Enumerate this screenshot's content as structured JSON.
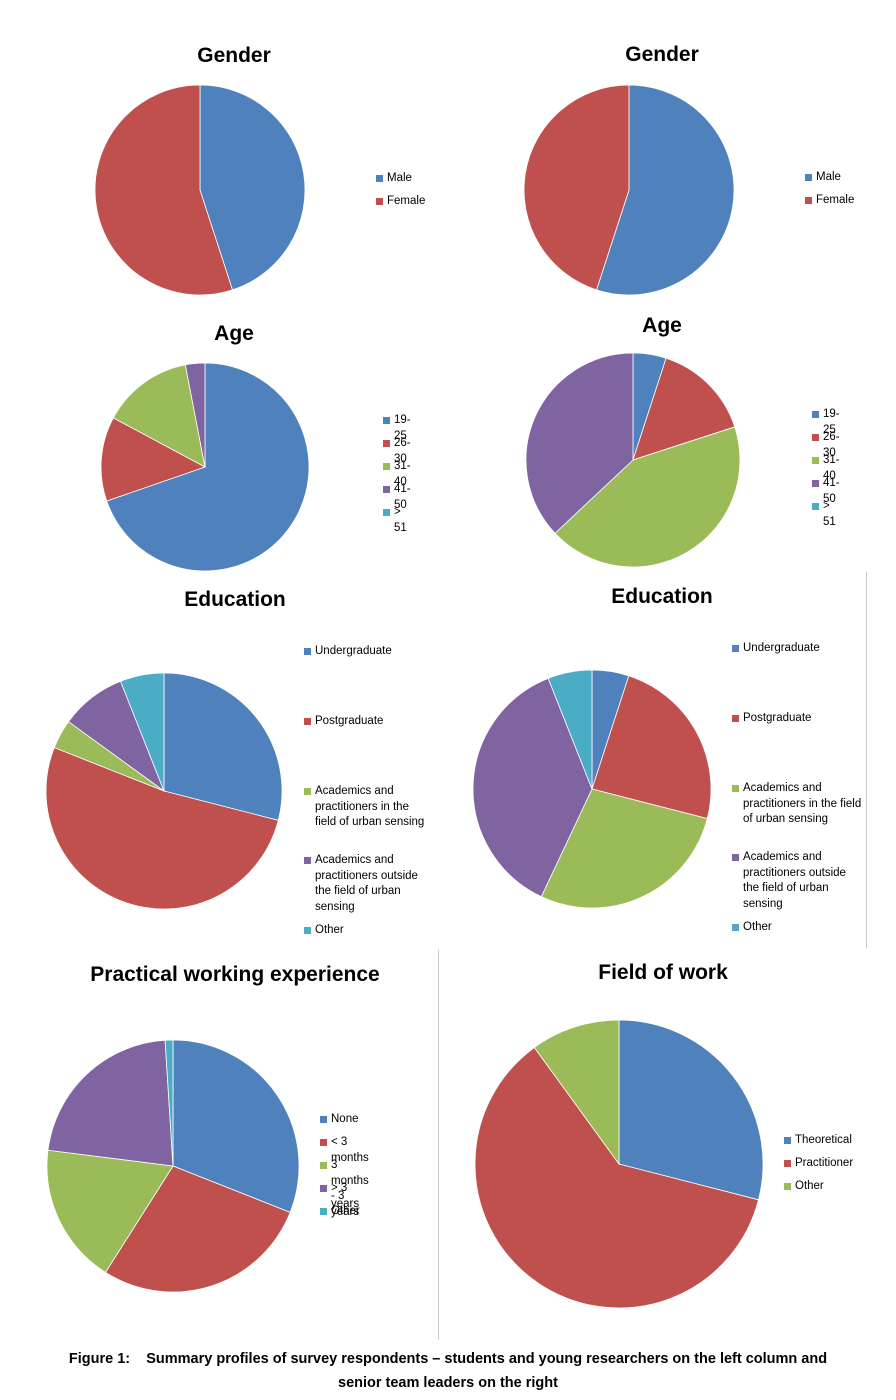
{
  "colors": {
    "blue": "#4f81bd",
    "red": "#c0504d",
    "green": "#9bbb59",
    "purple": "#8064a2",
    "cyan": "#4bacc6"
  },
  "chart_data": [
    {
      "id": "gender-left",
      "type": "pie",
      "title": "Gender",
      "labels": [
        "Male",
        "Female"
      ],
      "values": [
        45,
        55
      ],
      "colors": [
        "#4f81bd",
        "#c0504d"
      ],
      "legend": "right"
    },
    {
      "id": "gender-right",
      "type": "pie",
      "title": "Gender",
      "labels": [
        "Male",
        "Female"
      ],
      "values": [
        55,
        45
      ],
      "colors": [
        "#4f81bd",
        "#c0504d"
      ],
      "legend": "right"
    },
    {
      "id": "age-left",
      "type": "pie",
      "title": "Age",
      "labels": [
        "19-25",
        "26-30",
        "31-40",
        "41-50",
        "> 51"
      ],
      "values": [
        69,
        13,
        14,
        3,
        0
      ],
      "colors": [
        "#4f81bd",
        "#c0504d",
        "#9bbb59",
        "#8064a2",
        "#4bacc6"
      ],
      "legend": "right"
    },
    {
      "id": "age-right",
      "type": "pie",
      "title": "Age",
      "labels": [
        "19-25",
        "26-30",
        "31-40",
        "41-50",
        "> 51"
      ],
      "values": [
        5,
        15,
        43,
        37,
        0
      ],
      "colors": [
        "#4f81bd",
        "#c0504d",
        "#9bbb59",
        "#8064a2",
        "#4bacc6"
      ],
      "legend": "right"
    },
    {
      "id": "education-left",
      "type": "pie",
      "title": "Education",
      "labels": [
        "Undergraduate",
        "Postgraduate",
        "Academics and practitioners in the field of urban sensing",
        "Academics and practitioners outside the field of urban sensing",
        "Other"
      ],
      "values": [
        29,
        52,
        4,
        9,
        6
      ],
      "colors": [
        "#4f81bd",
        "#c0504d",
        "#9bbb59",
        "#8064a2",
        "#4bacc6"
      ],
      "legend": "right"
    },
    {
      "id": "education-right",
      "type": "pie",
      "title": "Education",
      "labels": [
        "Undergraduate",
        "Postgraduate",
        "Academics and practitioners in the field of urban sensing",
        "Academics and practitioners outside the field of urban sensing",
        "Other"
      ],
      "values": [
        5,
        24,
        28,
        37,
        6
      ],
      "colors": [
        "#4f81bd",
        "#c0504d",
        "#9bbb59",
        "#8064a2",
        "#4bacc6"
      ],
      "legend": "right"
    },
    {
      "id": "experience-left",
      "type": "pie",
      "title": "Practical working experience",
      "labels": [
        "None",
        "< 3 months",
        "3 months - 3 years",
        "> 3 years",
        "Other"
      ],
      "values": [
        31,
        28,
        18,
        22,
        1
      ],
      "colors": [
        "#4f81bd",
        "#c0504d",
        "#9bbb59",
        "#8064a2",
        "#4bacc6"
      ],
      "legend": "right"
    },
    {
      "id": "field-right",
      "type": "pie",
      "title": "Field of work",
      "labels": [
        "Theoretical",
        "Practitioner",
        "Other"
      ],
      "values": [
        29,
        61,
        10
      ],
      "colors": [
        "#4f81bd",
        "#c0504d",
        "#9bbb59"
      ],
      "legend": "right"
    }
  ],
  "caption": {
    "line1": "Figure 1:    Summary profiles of survey respondents – students and young researchers on the left column and",
    "line2": "senior team leaders on the right"
  }
}
